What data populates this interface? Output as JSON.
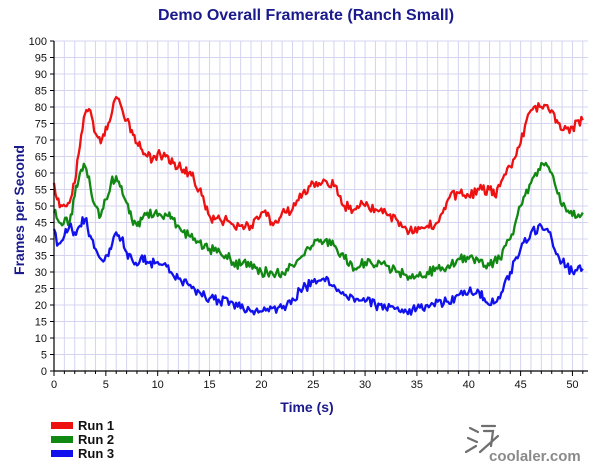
{
  "chart_data": {
    "type": "line",
    "title": "Demo Overall Framerate (Ranch Small)",
    "xlabel": "Time (s)",
    "ylabel": "Frames per Second",
    "xlim": [
      0,
      51.5
    ],
    "ylim": [
      0,
      100
    ],
    "x_ticks": [
      0,
      5,
      10,
      15,
      20,
      25,
      30,
      35,
      40,
      45,
      50
    ],
    "y_ticks": [
      0,
      5,
      10,
      15,
      20,
      25,
      30,
      35,
      40,
      45,
      50,
      55,
      60,
      65,
      70,
      75,
      80,
      85,
      90,
      95,
      100
    ],
    "grid": true,
    "legend_position": "bottom-left",
    "series": [
      {
        "name": "Run 1",
        "color": "#ee1111",
        "points": [
          [
            0,
            57
          ],
          [
            0.3,
            52
          ],
          [
            0.8,
            50
          ],
          [
            1.5,
            51
          ],
          [
            2,
            57
          ],
          [
            2.5,
            68
          ],
          [
            3,
            78
          ],
          [
            3.5,
            79
          ],
          [
            4,
            72
          ],
          [
            4.5,
            69
          ],
          [
            5,
            74
          ],
          [
            5.5,
            77
          ],
          [
            6,
            83
          ],
          [
            6.5,
            80
          ],
          [
            7,
            76
          ],
          [
            7.5,
            73
          ],
          [
            8,
            69
          ],
          [
            8.5,
            67
          ],
          [
            9,
            65
          ],
          [
            9.5,
            64
          ],
          [
            10,
            66
          ],
          [
            10.5,
            65
          ],
          [
            11,
            65
          ],
          [
            11.5,
            63
          ],
          [
            12,
            62
          ],
          [
            12.5,
            61
          ],
          [
            13,
            60
          ],
          [
            13.5,
            58
          ],
          [
            14,
            55
          ],
          [
            14.5,
            51
          ],
          [
            15,
            47
          ],
          [
            15.5,
            46
          ],
          [
            16,
            46
          ],
          [
            17,
            45
          ],
          [
            18,
            44
          ],
          [
            19,
            44
          ],
          [
            20,
            48
          ],
          [
            20.5,
            47
          ],
          [
            21,
            45
          ],
          [
            21.5,
            45
          ],
          [
            22,
            48
          ],
          [
            23,
            49
          ],
          [
            24,
            54
          ],
          [
            25,
            57
          ],
          [
            26,
            58
          ],
          [
            27,
            56
          ],
          [
            27.5,
            53
          ],
          [
            28,
            50
          ],
          [
            29,
            49
          ],
          [
            29.5,
            50
          ],
          [
            30,
            50
          ],
          [
            31,
            49
          ],
          [
            32,
            48
          ],
          [
            33,
            46
          ],
          [
            34,
            43
          ],
          [
            35,
            42
          ],
          [
            36,
            44
          ],
          [
            37,
            45
          ],
          [
            37.5,
            48
          ],
          [
            38,
            52
          ],
          [
            39,
            54
          ],
          [
            40,
            53
          ],
          [
            41,
            55
          ],
          [
            42,
            55
          ],
          [
            42.5,
            53
          ],
          [
            43,
            56
          ],
          [
            44,
            62
          ],
          [
            45,
            69
          ],
          [
            46,
            79
          ],
          [
            47,
            80
          ],
          [
            48,
            79
          ],
          [
            48.5,
            76
          ],
          [
            49,
            73
          ],
          [
            50,
            74
          ],
          [
            51,
            76
          ]
        ]
      },
      {
        "name": "Run 2",
        "color": "#118811",
        "points": [
          [
            0,
            48
          ],
          [
            0.5,
            45
          ],
          [
            1.5,
            45
          ],
          [
            2,
            53
          ],
          [
            2.5,
            60
          ],
          [
            3,
            62
          ],
          [
            3.5,
            56
          ],
          [
            4,
            50
          ],
          [
            4.5,
            47
          ],
          [
            5,
            52
          ],
          [
            5.5,
            57
          ],
          [
            6,
            59
          ],
          [
            6.5,
            56
          ],
          [
            7,
            51
          ],
          [
            7.5,
            46
          ],
          [
            8,
            44
          ],
          [
            8.5,
            46
          ],
          [
            9,
            48
          ],
          [
            10,
            47
          ],
          [
            11,
            47
          ],
          [
            11.5,
            46
          ],
          [
            12,
            44
          ],
          [
            13,
            41
          ],
          [
            14,
            39
          ],
          [
            15,
            37
          ],
          [
            16,
            36
          ],
          [
            17,
            34
          ],
          [
            18,
            32
          ],
          [
            19,
            33
          ],
          [
            20,
            30
          ],
          [
            21,
            30
          ],
          [
            22,
            30
          ],
          [
            23,
            32
          ],
          [
            24,
            35
          ],
          [
            25,
            38
          ],
          [
            26,
            39
          ],
          [
            27,
            38
          ],
          [
            28,
            34
          ],
          [
            29,
            31
          ],
          [
            30,
            33
          ],
          [
            31,
            32
          ],
          [
            32,
            32
          ],
          [
            33,
            30
          ],
          [
            34,
            29
          ],
          [
            35,
            29
          ],
          [
            36,
            30
          ],
          [
            37,
            31
          ],
          [
            38,
            32
          ],
          [
            39,
            34
          ],
          [
            40,
            34
          ],
          [
            41,
            33
          ],
          [
            42,
            32
          ],
          [
            43,
            34
          ],
          [
            44,
            40
          ],
          [
            45,
            50
          ],
          [
            46,
            57
          ],
          [
            47,
            63
          ],
          [
            48,
            60
          ],
          [
            49,
            50
          ],
          [
            50,
            47
          ],
          [
            51,
            48
          ]
        ]
      },
      {
        "name": "Run 3",
        "color": "#1111ee",
        "points": [
          [
            0,
            43
          ],
          [
            0.3,
            38
          ],
          [
            1,
            41
          ],
          [
            1.5,
            44
          ],
          [
            2,
            42
          ],
          [
            2.5,
            44
          ],
          [
            3,
            46
          ],
          [
            3.5,
            41
          ],
          [
            4,
            37
          ],
          [
            4.5,
            34
          ],
          [
            5,
            35
          ],
          [
            5.5,
            37
          ],
          [
            6,
            42
          ],
          [
            6.5,
            40
          ],
          [
            7,
            36
          ],
          [
            7.5,
            34
          ],
          [
            8,
            32
          ],
          [
            8.5,
            35
          ],
          [
            9,
            33
          ],
          [
            10,
            33
          ],
          [
            11,
            32
          ],
          [
            12,
            28
          ],
          [
            13,
            26
          ],
          [
            14,
            24
          ],
          [
            15,
            22
          ],
          [
            16,
            21
          ],
          [
            17,
            21
          ],
          [
            18,
            19
          ],
          [
            19,
            18
          ],
          [
            20,
            18
          ],
          [
            21,
            19
          ],
          [
            22,
            19
          ],
          [
            23,
            22
          ],
          [
            24,
            25
          ],
          [
            25,
            27
          ],
          [
            26,
            28
          ],
          [
            27,
            26
          ],
          [
            28,
            23
          ],
          [
            29,
            21
          ],
          [
            30,
            21
          ],
          [
            31,
            20
          ],
          [
            32,
            19
          ],
          [
            33,
            19
          ],
          [
            34,
            18
          ],
          [
            35,
            19
          ],
          [
            36,
            20
          ],
          [
            37,
            21
          ],
          [
            38,
            21
          ],
          [
            39,
            23
          ],
          [
            40,
            24
          ],
          [
            41,
            24
          ],
          [
            41.5,
            22
          ],
          [
            42,
            20
          ],
          [
            43,
            22
          ],
          [
            44,
            30
          ],
          [
            45,
            37
          ],
          [
            46,
            42
          ],
          [
            47,
            44
          ],
          [
            48,
            40
          ],
          [
            49,
            33
          ],
          [
            50,
            30
          ],
          [
            51,
            31
          ]
        ]
      }
    ]
  },
  "watermark": {
    "text": "coolaler.com"
  }
}
